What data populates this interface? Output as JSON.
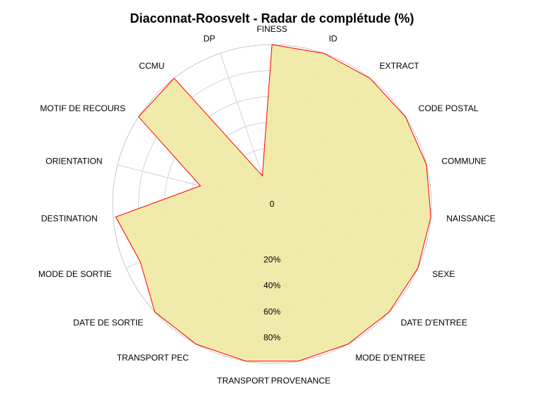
{
  "chart_data": {
    "type": "radar",
    "title": "Diaconnat-Roosvelt - Radar de complétude (%)",
    "axes": [
      "FINESS",
      "ID",
      "EXTRACT",
      "CODE POSTAL",
      "COMMUNE",
      "NAISSANCE",
      "SEXE",
      "DATE D'ENTREE",
      "MODE D'ENTREE",
      "PROVENANCE",
      "TRANSPORT",
      "TRANSPORT PEC",
      "DATE DE SORTIE",
      "MODE DE SORTIE",
      "DESTINATION",
      "ORIENTATION",
      "MOTIF DE RECOURS",
      "CCMU",
      "DP"
    ],
    "series": [
      {
        "values": [
          100,
          100,
          100,
          100,
          100,
          100,
          100,
          100,
          100,
          100,
          100,
          100,
          100,
          88,
          98,
          34,
          100,
          100,
          0
        ]
      }
    ],
    "rmax": 100,
    "ring_labels": [
      "0",
      "20%",
      "40%",
      "60%",
      "80%"
    ],
    "fill_color": "#f0e9a4",
    "line_color": "#ff0000",
    "grid_color": "#c8c8c8"
  }
}
